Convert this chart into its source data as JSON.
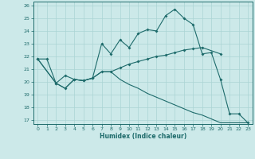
{
  "xlabel": "Humidex (Indice chaleur)",
  "background_color": "#cce9e9",
  "grid_color": "#aad4d4",
  "line_color": "#1e6b6b",
  "xlim": [
    -0.5,
    23.5
  ],
  "ylim": [
    16.7,
    26.3
  ],
  "yticks": [
    17,
    18,
    19,
    20,
    21,
    22,
    23,
    24,
    25,
    26
  ],
  "xticks": [
    0,
    1,
    2,
    3,
    4,
    5,
    6,
    7,
    8,
    9,
    10,
    11,
    12,
    13,
    14,
    15,
    16,
    17,
    18,
    19,
    20,
    21,
    22,
    23
  ],
  "line1_x": [
    0,
    1,
    2,
    3,
    4,
    5,
    6,
    7,
    8,
    9,
    10,
    11,
    12,
    13,
    14,
    15,
    16,
    17,
    18,
    19,
    20,
    21,
    22,
    23
  ],
  "line1_y": [
    21.8,
    21.8,
    19.9,
    20.5,
    20.2,
    20.1,
    20.3,
    23.0,
    22.2,
    23.3,
    22.7,
    23.8,
    24.1,
    24.0,
    25.2,
    25.7,
    25.0,
    24.5,
    22.2,
    22.3,
    20.2,
    17.5,
    17.5,
    16.8
  ],
  "line2_x": [
    0,
    2,
    3,
    4,
    5,
    6,
    7,
    8,
    9,
    10,
    11,
    12,
    13,
    14,
    15,
    16,
    17,
    18,
    20
  ],
  "line2_y": [
    21.8,
    19.9,
    19.5,
    20.2,
    20.1,
    20.3,
    20.8,
    20.8,
    21.1,
    21.4,
    21.6,
    21.8,
    22.0,
    22.1,
    22.3,
    22.5,
    22.6,
    22.7,
    22.2
  ],
  "line3_x": [
    0,
    2,
    3,
    4,
    5,
    6,
    7,
    8,
    9,
    10,
    11,
    12,
    13,
    14,
    15,
    16,
    17,
    18,
    19,
    20,
    21,
    22,
    23
  ],
  "line3_y": [
    21.8,
    19.9,
    19.5,
    20.2,
    20.1,
    20.3,
    20.8,
    20.8,
    20.2,
    19.8,
    19.5,
    19.1,
    18.8,
    18.5,
    18.2,
    17.9,
    17.6,
    17.4,
    17.1,
    16.8,
    16.8,
    16.8,
    16.8
  ]
}
